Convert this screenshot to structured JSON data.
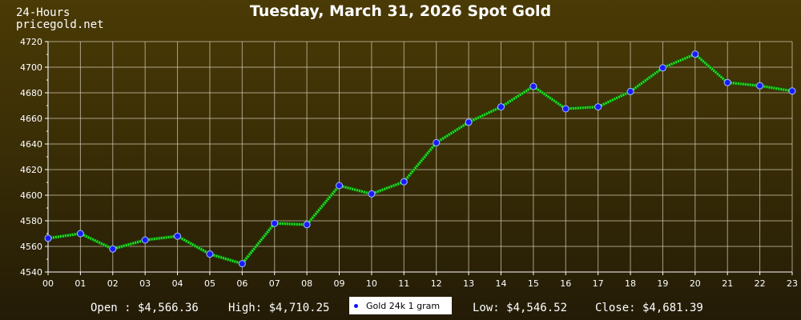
{
  "header": {
    "corner_line1": "24-Hours",
    "corner_line2": "pricegold.net"
  },
  "stats": {
    "open": "Open : $4,566.36",
    "high": "High: $4,710.25",
    "low": "Low: $4,546.52",
    "close": "Close: $4,681.39"
  },
  "colors": {
    "line": "#22e622",
    "marker": "#1a1aff",
    "grid": "#cfc8b0"
  },
  "chart_data": {
    "type": "line",
    "title": "Tuesday, March 31, 2026 Spot Gold",
    "xlabel": "",
    "ylabel": "",
    "categories": [
      "00",
      "01",
      "02",
      "03",
      "04",
      "05",
      "06",
      "07",
      "08",
      "09",
      "10",
      "11",
      "12",
      "13",
      "14",
      "15",
      "16",
      "17",
      "18",
      "19",
      "20",
      "21",
      "22",
      "23"
    ],
    "series": [
      {
        "name": "Gold 24k 1 gram",
        "values": [
          4566.4,
          4570,
          4558,
          4565,
          4568,
          4554,
          4546.5,
          4578,
          4577,
          4607.5,
          4601,
          4610.5,
          4641,
          4657,
          4669,
          4685,
          4667.5,
          4669,
          4681,
          4699.5,
          4710.2,
          4688,
          4685.5,
          4681.4
        ]
      }
    ],
    "ylim": [
      4540,
      4720
    ],
    "yticks": [
      "4540",
      "4560",
      "4580",
      "4600",
      "4620",
      "4640",
      "4660",
      "4680",
      "4700",
      "4720"
    ],
    "grid": true,
    "legend": "bottom-center"
  }
}
